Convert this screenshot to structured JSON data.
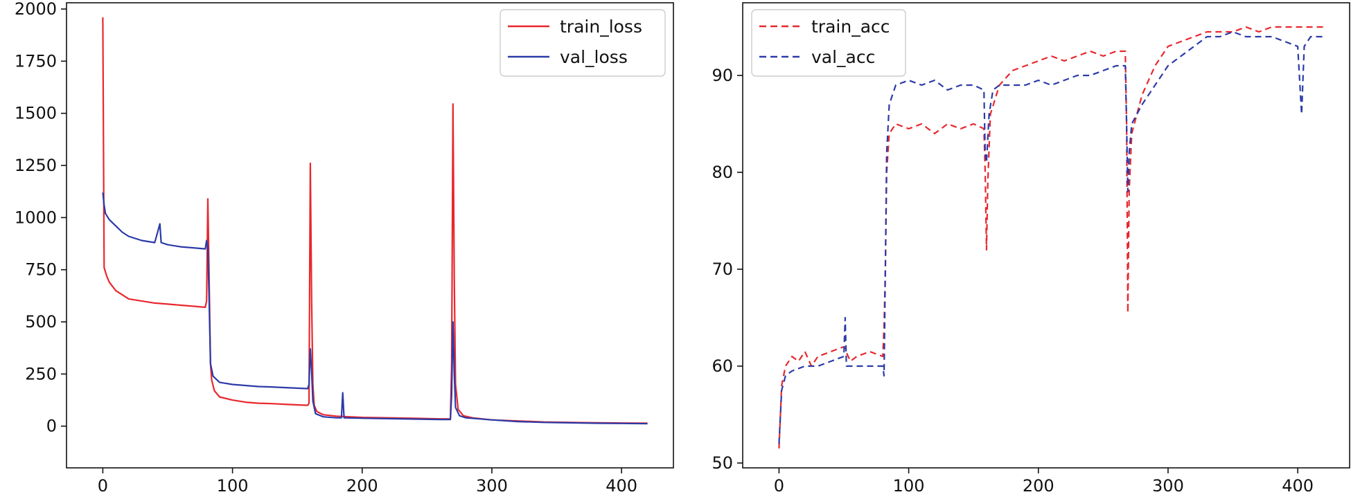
{
  "chart_data": [
    {
      "type": "line",
      "title": "",
      "xlabel": "",
      "ylabel": "",
      "xlim": [
        -28,
        440
      ],
      "ylim": [
        -200,
        2030
      ],
      "x_ticks": [
        0,
        100,
        200,
        300,
        400
      ],
      "y_ticks": [
        0,
        250,
        500,
        750,
        1000,
        1250,
        1500,
        1750,
        2000
      ],
      "x_tick_labels": [
        "0",
        "100",
        "200",
        "300",
        "400"
      ],
      "y_tick_labels": [
        "0",
        "250",
        "500",
        "750",
        "1000",
        "1250",
        "1500",
        "1750",
        "2000"
      ],
      "legend_position": "top-right",
      "legend_labels": [
        "train_loss",
        "val_loss"
      ],
      "series": [
        {
          "name": "train_loss",
          "color": "#e8272d",
          "dash": "solid",
          "points": [
            [
              0,
              1960
            ],
            [
              1,
              760
            ],
            [
              3,
              720
            ],
            [
              5,
              690
            ],
            [
              10,
              650
            ],
            [
              15,
              630
            ],
            [
              20,
              610
            ],
            [
              30,
              600
            ],
            [
              40,
              590
            ],
            [
              50,
              585
            ],
            [
              60,
              580
            ],
            [
              70,
              575
            ],
            [
              79,
              570
            ],
            [
              80,
              600
            ],
            [
              81,
              1090
            ],
            [
              82,
              700
            ],
            [
              83,
              300
            ],
            [
              84,
              220
            ],
            [
              86,
              170
            ],
            [
              90,
              140
            ],
            [
              100,
              125
            ],
            [
              110,
              115
            ],
            [
              120,
              110
            ],
            [
              130,
              108
            ],
            [
              140,
              105
            ],
            [
              150,
              102
            ],
            [
              158,
              100
            ],
            [
              159,
              110
            ],
            [
              160,
              1260
            ],
            [
              161,
              600
            ],
            [
              162,
              200
            ],
            [
              163,
              100
            ],
            [
              165,
              70
            ],
            [
              170,
              55
            ],
            [
              180,
              48
            ],
            [
              200,
              42
            ],
            [
              220,
              40
            ],
            [
              240,
              38
            ],
            [
              260,
              35
            ],
            [
              268,
              35
            ],
            [
              269,
              300
            ],
            [
              270,
              1545
            ],
            [
              271,
              700
            ],
            [
              272,
              200
            ],
            [
              274,
              80
            ],
            [
              278,
              50
            ],
            [
              285,
              40
            ],
            [
              300,
              30
            ],
            [
              320,
              25
            ],
            [
              340,
              20
            ],
            [
              360,
              18
            ],
            [
              380,
              16
            ],
            [
              400,
              15
            ],
            [
              420,
              14
            ]
          ]
        },
        {
          "name": "val_loss",
          "color": "#2b3aa8",
          "dash": "solid",
          "points": [
            [
              0,
              1120
            ],
            [
              1,
              1060
            ],
            [
              2,
              1020
            ],
            [
              5,
              990
            ],
            [
              10,
              960
            ],
            [
              15,
              930
            ],
            [
              20,
              910
            ],
            [
              30,
              890
            ],
            [
              40,
              880
            ],
            [
              44,
              970
            ],
            [
              45,
              880
            ],
            [
              50,
              870
            ],
            [
              60,
              860
            ],
            [
              70,
              855
            ],
            [
              79,
              850
            ],
            [
              80,
              890
            ],
            [
              81,
              860
            ],
            [
              82,
              600
            ],
            [
              83,
              300
            ],
            [
              85,
              240
            ],
            [
              90,
              210
            ],
            [
              100,
              200
            ],
            [
              110,
              195
            ],
            [
              120,
              190
            ],
            [
              130,
              188
            ],
            [
              140,
              185
            ],
            [
              150,
              182
            ],
            [
              158,
              180
            ],
            [
              159,
              200
            ],
            [
              160,
              370
            ],
            [
              161,
              260
            ],
            [
              162,
              120
            ],
            [
              164,
              60
            ],
            [
              170,
              45
            ],
            [
              180,
              40
            ],
            [
              184,
              40
            ],
            [
              185,
              160
            ],
            [
              186,
              40
            ],
            [
              200,
              38
            ],
            [
              220,
              36
            ],
            [
              240,
              34
            ],
            [
              260,
              32
            ],
            [
              268,
              32
            ],
            [
              269,
              150
            ],
            [
              270,
              500
            ],
            [
              271,
              250
            ],
            [
              272,
              90
            ],
            [
              275,
              50
            ],
            [
              280,
              40
            ],
            [
              290,
              35
            ],
            [
              300,
              30
            ],
            [
              320,
              22
            ],
            [
              340,
              18
            ],
            [
              360,
              16
            ],
            [
              380,
              14
            ],
            [
              400,
              13
            ],
            [
              420,
              12
            ]
          ]
        }
      ]
    },
    {
      "type": "line",
      "title": "",
      "xlabel": "",
      "ylabel": "",
      "xlim": [
        -28,
        440
      ],
      "ylim": [
        49.5,
        97.5
      ],
      "x_ticks": [
        0,
        100,
        200,
        300,
        400
      ],
      "y_ticks": [
        50,
        60,
        70,
        80,
        90
      ],
      "x_tick_labels": [
        "0",
        "100",
        "200",
        "300",
        "400"
      ],
      "y_tick_labels": [
        "50",
        "60",
        "70",
        "80",
        "90"
      ],
      "legend_position": "top-left",
      "legend_labels": [
        "train_acc",
        "val_acc"
      ],
      "series": [
        {
          "name": "train_acc",
          "color": "#e8272d",
          "dash": "dashed",
          "points": [
            [
              0,
              51.5
            ],
            [
              2,
              58
            ],
            [
              5,
              60
            ],
            [
              10,
              61
            ],
            [
              15,
              60.5
            ],
            [
              20,
              61.5
            ],
            [
              25,
              60
            ],
            [
              30,
              61
            ],
            [
              40,
              61.5
            ],
            [
              50,
              62
            ],
            [
              55,
              60.5
            ],
            [
              60,
              61
            ],
            [
              70,
              61.5
            ],
            [
              80,
              61
            ],
            [
              81,
              64
            ],
            [
              82,
              70
            ],
            [
              83,
              80
            ],
            [
              85,
              84
            ],
            [
              90,
              85
            ],
            [
              100,
              84.5
            ],
            [
              110,
              85
            ],
            [
              120,
              84
            ],
            [
              130,
              85
            ],
            [
              140,
              84.5
            ],
            [
              150,
              85
            ],
            [
              158,
              84.5
            ],
            [
              159,
              80
            ],
            [
              160,
              72
            ],
            [
              161,
              79
            ],
            [
              163,
              86
            ],
            [
              170,
              89
            ],
            [
              180,
              90.5
            ],
            [
              190,
              91
            ],
            [
              200,
              91.5
            ],
            [
              210,
              92
            ],
            [
              220,
              91.5
            ],
            [
              230,
              92
            ],
            [
              240,
              92.5
            ],
            [
              250,
              92
            ],
            [
              260,
              92.5
            ],
            [
              267,
              92.5
            ],
            [
              268,
              85
            ],
            [
              269,
              65.5
            ],
            [
              270,
              78
            ],
            [
              272,
              84
            ],
            [
              280,
              88
            ],
            [
              290,
              91
            ],
            [
              300,
              93
            ],
            [
              310,
              93.5
            ],
            [
              320,
              94
            ],
            [
              330,
              94.5
            ],
            [
              340,
              94.5
            ],
            [
              350,
              94.5
            ],
            [
              360,
              95
            ],
            [
              370,
              94.5
            ],
            [
              380,
              95
            ],
            [
              390,
              95
            ],
            [
              400,
              95
            ],
            [
              410,
              95
            ],
            [
              420,
              95
            ]
          ]
        },
        {
          "name": "val_acc",
          "color": "#2b3aa8",
          "dash": "dashed",
          "points": [
            [
              0,
              52
            ],
            [
              2,
              57.5
            ],
            [
              5,
              59
            ],
            [
              10,
              59.5
            ],
            [
              20,
              60
            ],
            [
              30,
              60
            ],
            [
              40,
              60.5
            ],
            [
              50,
              61
            ],
            [
              51,
              65
            ],
            [
              52,
              60
            ],
            [
              60,
              60
            ],
            [
              70,
              60
            ],
            [
              80,
              60
            ],
            [
              81,
              59
            ],
            [
              82,
              70
            ],
            [
              83,
              82
            ],
            [
              85,
              87
            ],
            [
              90,
              89
            ],
            [
              100,
              89.5
            ],
            [
              110,
              89
            ],
            [
              120,
              89.5
            ],
            [
              130,
              88.5
            ],
            [
              140,
              89
            ],
            [
              150,
              89
            ],
            [
              158,
              88.5
            ],
            [
              159,
              82
            ],
            [
              160,
              81
            ],
            [
              162,
              86
            ],
            [
              165,
              88.5
            ],
            [
              170,
              89
            ],
            [
              180,
              89
            ],
            [
              190,
              89
            ],
            [
              200,
              89.5
            ],
            [
              210,
              89
            ],
            [
              220,
              89.5
            ],
            [
              230,
              90
            ],
            [
              240,
              90
            ],
            [
              250,
              90.5
            ],
            [
              260,
              91
            ],
            [
              267,
              91
            ],
            [
              268,
              85
            ],
            [
              269,
              78
            ],
            [
              270,
              82
            ],
            [
              272,
              85
            ],
            [
              280,
              87
            ],
            [
              290,
              89
            ],
            [
              300,
              91
            ],
            [
              310,
              92
            ],
            [
              320,
              93
            ],
            [
              330,
              94
            ],
            [
              340,
              94
            ],
            [
              350,
              94.5
            ],
            [
              360,
              94
            ],
            [
              370,
              94
            ],
            [
              380,
              94
            ],
            [
              390,
              93.5
            ],
            [
              400,
              93
            ],
            [
              403,
              86
            ],
            [
              405,
              93
            ],
            [
              410,
              94
            ],
            [
              420,
              94
            ]
          ]
        }
      ]
    }
  ],
  "legend": {
    "left": {
      "series_1": "train_loss",
      "series_2": "val_loss"
    },
    "right": {
      "series_1": "train_acc",
      "series_2": "val_acc"
    }
  }
}
